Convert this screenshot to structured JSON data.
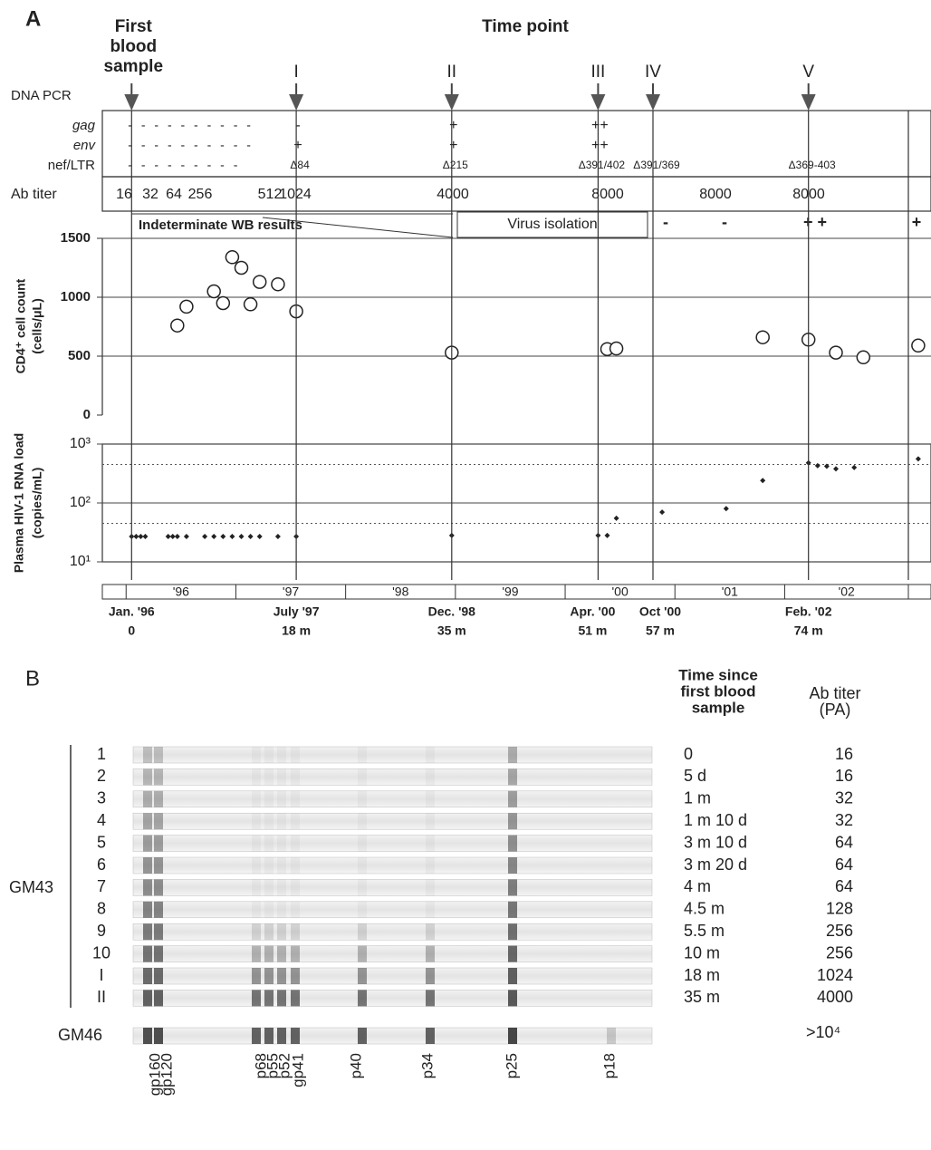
{
  "panel_a": {
    "label": "A",
    "time_point_title": "Time point",
    "first_sample": [
      "First",
      "blood",
      "sample"
    ],
    "time_points": [
      "I",
      "II",
      "III",
      "IV",
      "V"
    ],
    "pcr_title": "DNA PCR",
    "pcr_rows": [
      {
        "name": "gag",
        "results": [
          "- - - - - - - - - -",
          "-",
          "+",
          "++",
          null,
          null
        ]
      },
      {
        "name": "env",
        "results": [
          "- - - - - - - - - -",
          "+",
          "+",
          "++",
          null,
          null
        ]
      },
      {
        "name": "nef/LTR",
        "results": [
          "- - - - - - - - -",
          "Δ84",
          "Δ215",
          "Δ391/402",
          "Δ391/369",
          "Δ369-403"
        ]
      }
    ],
    "ab_titer_title": "Ab titer",
    "ab_titers": [
      16,
      32,
      64,
      256,
      512,
      1024,
      4000,
      8000,
      8000,
      8000
    ],
    "wb_note": "Indeterminate WB results",
    "virus_isolation": {
      "label": "Virus isolation",
      "results": [
        "-",
        "-",
        "+ +",
        "+"
      ]
    },
    "cd4": {
      "y_title": [
        "CD4⁺ cell count",
        "(cells/μL)"
      ],
      "ylim": [
        0,
        1500
      ],
      "yticks": [
        0,
        500,
        1000,
        1500
      ],
      "grid": true,
      "x": [
        5,
        6,
        9,
        10,
        11,
        12,
        13,
        14,
        16,
        18,
        35,
        52,
        53,
        69,
        74,
        77,
        80,
        86
      ],
      "values": [
        760,
        920,
        1050,
        950,
        1340,
        1250,
        940,
        1130,
        1110,
        880,
        530,
        560,
        565,
        660,
        640,
        530,
        490,
        590
      ]
    },
    "rna": {
      "y_title": [
        "Plasma HIV-1 RNA load",
        "(copies/mL)"
      ],
      "log_scale": true,
      "ylim": [
        10,
        1000
      ],
      "yticks": [
        {
          "value": 10,
          "label": "10¹"
        },
        {
          "value": 100,
          "label": "10²"
        },
        {
          "value": 1000,
          "label": "10³"
        }
      ],
      "dotted_lines": [
        45,
        450
      ],
      "x": [
        0,
        0.5,
        1,
        1.5,
        4,
        4.5,
        5,
        6,
        8,
        9,
        10,
        11,
        12,
        13,
        14,
        16,
        18,
        35,
        51,
        52,
        53,
        58,
        65,
        69,
        74,
        75,
        76,
        77,
        79,
        86
      ],
      "values": [
        27,
        27,
        27,
        27,
        27,
        27,
        27,
        27,
        27,
        27,
        27,
        27,
        27,
        27,
        27,
        27,
        27,
        28,
        28,
        28,
        55,
        70,
        80,
        240,
        480,
        430,
        420,
        380,
        400,
        560
      ]
    },
    "timeline": {
      "xlim": [
        -3,
        87
      ],
      "years": [
        "'96",
        "'97",
        "'98",
        "'99",
        "'00",
        "'01",
        "'02"
      ],
      "dates": [
        "Jan. '96",
        "July '97",
        "Dec. '98",
        "Apr. '00",
        "Oct '00",
        "Feb. '02"
      ],
      "elapsed": [
        0,
        {
          "value": 18,
          "label": "18 m"
        },
        {
          "value": 35,
          "label": "35 m"
        },
        {
          "value": 51,
          "label": "51 m"
        },
        {
          "value": 57,
          "label": "57 m"
        },
        {
          "value": 74,
          "label": "74 m"
        }
      ]
    }
  },
  "panel_b": {
    "label": "B",
    "time_header": [
      "Time since",
      "first blood",
      "sample"
    ],
    "titer_header": [
      "Ab titer",
      "(PA)"
    ],
    "group": "GM43",
    "lanes": [
      "1",
      "2",
      "3",
      "4",
      "5",
      "6",
      "7",
      "8",
      "9",
      "10",
      "I",
      "II"
    ],
    "times": [
      "0",
      "5 d",
      "1 m",
      "1 m 10 d",
      "3 m 10 d",
      "3 m 20 d",
      "4 m",
      "4.5 m",
      "5.5 m",
      "10 m",
      "18 m",
      "35 m"
    ],
    "titers": [
      16,
      16,
      32,
      32,
      64,
      64,
      64,
      128,
      256,
      256,
      1024,
      4000
    ],
    "control": {
      "name": "GM46",
      "titer": ">10⁴"
    },
    "bands": [
      "gp160",
      "gp120",
      "p68",
      "p55",
      "p52",
      "gp41",
      "p40",
      "p34",
      "p25",
      "p18"
    ]
  }
}
